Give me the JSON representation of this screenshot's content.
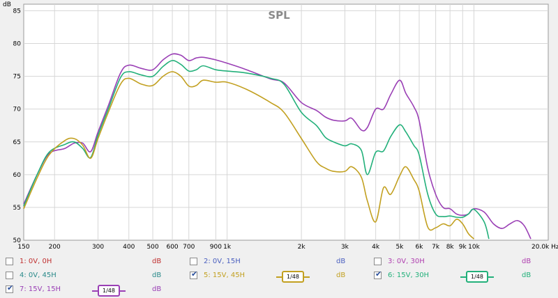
{
  "chart_data": {
    "type": "line",
    "title": "SPL",
    "y_unit": "dB",
    "x_unit": "Hz",
    "x_scale": "log",
    "xlim": [
      150,
      20000
    ],
    "ylim": [
      50,
      86
    ],
    "grid": true,
    "y_ticks": [
      50,
      55,
      60,
      65,
      70,
      75,
      80,
      85
    ],
    "x_ticks": [
      {
        "v": 150,
        "label": "150"
      },
      {
        "v": 200,
        "label": "200"
      },
      {
        "v": 300,
        "label": "300"
      },
      {
        "v": 400,
        "label": "400"
      },
      {
        "v": 500,
        "label": "500"
      },
      {
        "v": 600,
        "label": "600"
      },
      {
        "v": 700,
        "label": "700"
      },
      {
        "v": 900,
        "label": "900"
      },
      {
        "v": 1000,
        "label": "1k"
      },
      {
        "v": 2000,
        "label": "2k"
      },
      {
        "v": 3000,
        "label": "3k"
      },
      {
        "v": 4000,
        "label": "4k"
      },
      {
        "v": 5000,
        "label": "5k"
      },
      {
        "v": 6000,
        "label": "6k"
      },
      {
        "v": 7000,
        "label": "7k"
      },
      {
        "v": 8000,
        "label": "8k"
      },
      {
        "v": 9000,
        "label": "9k"
      },
      {
        "v": 10000,
        "label": "10k"
      },
      {
        "v": 20000,
        "label": "20.0k Hz"
      }
    ],
    "series": [
      {
        "name": "7: 15V, 15H",
        "color": "#9a3fb5",
        "points": [
          [
            150,
            55.5
          ],
          [
            170,
            60
          ],
          [
            190,
            63.2
          ],
          [
            220,
            64
          ],
          [
            240,
            64.8
          ],
          [
            260,
            64.8
          ],
          [
            280,
            63.5
          ],
          [
            300,
            66.5
          ],
          [
            330,
            70.5
          ],
          [
            370,
            75.5
          ],
          [
            400,
            76.7
          ],
          [
            450,
            76.2
          ],
          [
            500,
            76
          ],
          [
            550,
            77.5
          ],
          [
            600,
            78.4
          ],
          [
            650,
            78.2
          ],
          [
            700,
            77.4
          ],
          [
            750,
            77.8
          ],
          [
            800,
            77.9
          ],
          [
            900,
            77.5
          ],
          [
            1000,
            77
          ],
          [
            1200,
            76
          ],
          [
            1500,
            74.6
          ],
          [
            1700,
            74
          ],
          [
            2000,
            71
          ],
          [
            2300,
            69.8
          ],
          [
            2500,
            68.8
          ],
          [
            2700,
            68.3
          ],
          [
            3000,
            68.2
          ],
          [
            3200,
            68.6
          ],
          [
            3500,
            66.8
          ],
          [
            3700,
            67.2
          ],
          [
            4000,
            70
          ],
          [
            4300,
            70
          ],
          [
            4600,
            72.2
          ],
          [
            5000,
            74.4
          ],
          [
            5300,
            72.4
          ],
          [
            5700,
            70.4
          ],
          [
            6000,
            68.2
          ],
          [
            6500,
            61
          ],
          [
            7000,
            57
          ],
          [
            7500,
            55
          ],
          [
            8000,
            54.8
          ],
          [
            8500,
            54
          ],
          [
            9000,
            53.8
          ],
          [
            9500,
            54
          ],
          [
            10000,
            54.8
          ],
          [
            11000,
            54.3
          ],
          [
            12000,
            52.5
          ],
          [
            13000,
            51.8
          ],
          [
            14000,
            52.5
          ],
          [
            15000,
            53
          ],
          [
            16000,
            52.2
          ],
          [
            17000,
            50.2
          ]
        ]
      },
      {
        "name": "6: 15V, 30H",
        "color": "#22b07a",
        "points": [
          [
            150,
            55.2
          ],
          [
            170,
            60
          ],
          [
            190,
            63.4
          ],
          [
            220,
            64.6
          ],
          [
            240,
            65
          ],
          [
            260,
            64
          ],
          [
            280,
            62.6
          ],
          [
            300,
            66
          ],
          [
            330,
            70
          ],
          [
            370,
            74.8
          ],
          [
            400,
            75.7
          ],
          [
            450,
            75.2
          ],
          [
            500,
            75
          ],
          [
            550,
            76.5
          ],
          [
            600,
            77.4
          ],
          [
            650,
            76.8
          ],
          [
            700,
            75.8
          ],
          [
            750,
            76
          ],
          [
            800,
            76.6
          ],
          [
            900,
            76
          ],
          [
            1000,
            75.8
          ],
          [
            1200,
            75.5
          ],
          [
            1500,
            74.7
          ],
          [
            1700,
            73.8
          ],
          [
            2000,
            69.5
          ],
          [
            2300,
            67.5
          ],
          [
            2500,
            65.7
          ],
          [
            2700,
            65
          ],
          [
            3000,
            64.4
          ],
          [
            3200,
            64.7
          ],
          [
            3500,
            63.7
          ],
          [
            3700,
            60
          ],
          [
            4000,
            63.4
          ],
          [
            4300,
            63.6
          ],
          [
            4600,
            65.8
          ],
          [
            5000,
            67.6
          ],
          [
            5300,
            66.5
          ],
          [
            5700,
            64.5
          ],
          [
            6000,
            63
          ],
          [
            6500,
            57
          ],
          [
            7000,
            54
          ],
          [
            7500,
            53.6
          ],
          [
            8000,
            53.7
          ],
          [
            8500,
            53.5
          ],
          [
            9000,
            53.5
          ],
          [
            9500,
            54
          ],
          [
            10000,
            54.7
          ],
          [
            11000,
            52.8
          ],
          [
            11500,
            50.2
          ]
        ]
      },
      {
        "name": "5: 15V, 45H",
        "color": "#c2a020",
        "points": [
          [
            150,
            54.8
          ],
          [
            170,
            59.5
          ],
          [
            190,
            63
          ],
          [
            220,
            65.2
          ],
          [
            240,
            65.5
          ],
          [
            260,
            64.5
          ],
          [
            280,
            62.5
          ],
          [
            300,
            65.5
          ],
          [
            330,
            69.5
          ],
          [
            370,
            73.8
          ],
          [
            400,
            74.7
          ],
          [
            450,
            73.8
          ],
          [
            500,
            73.6
          ],
          [
            550,
            75
          ],
          [
            600,
            75.7
          ],
          [
            650,
            75
          ],
          [
            700,
            73.5
          ],
          [
            750,
            73.6
          ],
          [
            800,
            74.4
          ],
          [
            900,
            74.1
          ],
          [
            1000,
            74.1
          ],
          [
            1200,
            73
          ],
          [
            1500,
            71
          ],
          [
            1700,
            69.5
          ],
          [
            2000,
            65.5
          ],
          [
            2300,
            62
          ],
          [
            2500,
            61
          ],
          [
            2700,
            60.5
          ],
          [
            3000,
            60.5
          ],
          [
            3200,
            61.2
          ],
          [
            3500,
            59.6
          ],
          [
            3700,
            56
          ],
          [
            4000,
            52.8
          ],
          [
            4300,
            58
          ],
          [
            4600,
            57
          ],
          [
            5000,
            59.8
          ],
          [
            5300,
            61.2
          ],
          [
            5700,
            59.3
          ],
          [
            6000,
            57.5
          ],
          [
            6500,
            52
          ],
          [
            7000,
            51.9
          ],
          [
            7500,
            52.5
          ],
          [
            8000,
            52.2
          ],
          [
            8500,
            53.2
          ],
          [
            9000,
            52.5
          ],
          [
            9500,
            51
          ],
          [
            10000,
            50.2
          ]
        ]
      }
    ]
  },
  "legend": {
    "unit": "dB",
    "items": [
      {
        "label": "1: 0V, 0H",
        "checked": false,
        "color": "#c03030",
        "smoothing": ""
      },
      {
        "label": "2: 0V, 15H",
        "checked": false,
        "color": "#4a5fbf",
        "smoothing": ""
      },
      {
        "label": "3: 0V, 30H",
        "checked": false,
        "color": "#b040b0",
        "smoothing": ""
      },
      {
        "label": "4: 0V, 45H",
        "checked": false,
        "color": "#2a8a8a",
        "smoothing": ""
      },
      {
        "label": "5: 15V, 45H",
        "checked": true,
        "color": "#c2a020",
        "smoothing": "1/48"
      },
      {
        "label": "6: 15V, 30H",
        "checked": true,
        "color": "#22b07a",
        "smoothing": "1/48"
      },
      {
        "label": "7: 15V, 15H",
        "checked": true,
        "color": "#9a3fb5",
        "smoothing": "1/48"
      }
    ]
  }
}
